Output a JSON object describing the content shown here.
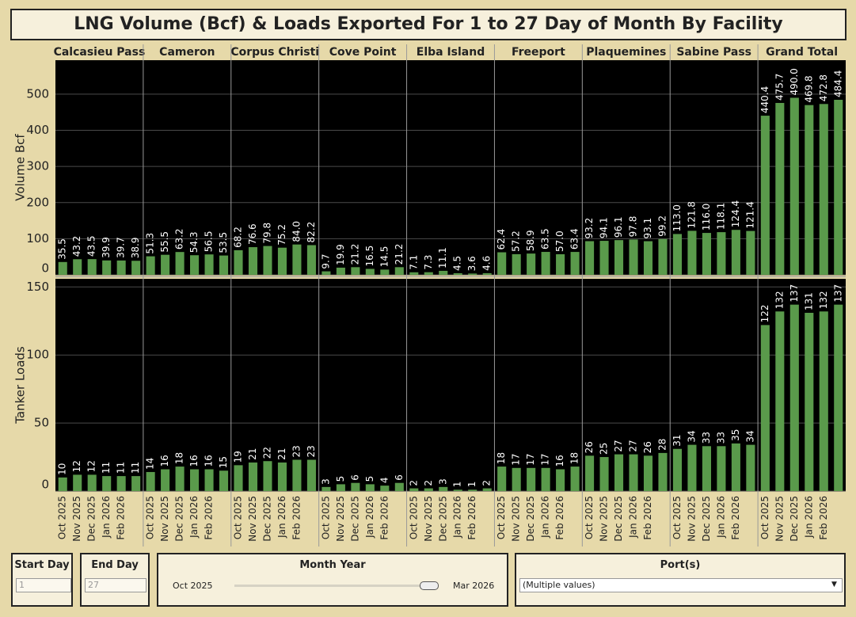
{
  "title": "LNG Volume (Bcf) & Loads Exported For 1 to 27 Day of Month By Facility",
  "facilities": [
    "Calcasieu Pass",
    "Cameron",
    "Corpus Christi",
    "Cove Point",
    "Elba Island",
    "Freeport",
    "Plaquemines",
    "Sabine Pass",
    "Grand Total"
  ],
  "categories": [
    "Oct 2025",
    "Nov 2025",
    "Dec 2025",
    "Jan 2026",
    "Feb 2026",
    null
  ],
  "chart_data": [
    {
      "type": "bar",
      "y_label": "Volume Bcf",
      "ylim": [
        0,
        594
      ],
      "yticks": [
        0,
        100,
        200,
        300,
        400,
        500
      ],
      "color": "#5a9a4b",
      "series": [
        {
          "values": [
            35.5,
            43.2,
            43.5,
            39.9,
            39.7,
            38.9
          ],
          "value_labels": [
            "35.5",
            "43.2",
            "43.5",
            "39.9",
            "39.7",
            "38.9"
          ]
        },
        {
          "values": [
            51.3,
            55.5,
            63.2,
            54.3,
            56.5,
            53.5
          ],
          "value_labels": [
            "51.3",
            "55.5",
            "63.2",
            "54.3",
            "56.5",
            "53.5"
          ]
        },
        {
          "values": [
            68.2,
            76.6,
            79.8,
            75.2,
            84.0,
            82.2
          ],
          "value_labels": [
            "68.2",
            "76.6",
            "79.8",
            "75.2",
            "84.0",
            "82.2"
          ]
        },
        {
          "values": [
            9.7,
            19.9,
            21.2,
            16.5,
            14.5,
            21.2
          ],
          "value_labels": [
            "9.7",
            "19.9",
            "21.2",
            "16.5",
            "14.5",
            "21.2"
          ]
        },
        {
          "values": [
            7.1,
            7.3,
            11.1,
            4.5,
            3.6,
            4.6
          ],
          "value_labels": [
            "7.1",
            "7.3",
            "11.1",
            "4.5",
            "3.6",
            "4.6"
          ]
        },
        {
          "values": [
            62.4,
            57.2,
            58.9,
            63.5,
            57.0,
            63.4
          ],
          "value_labels": [
            "62.4",
            "57.2",
            "58.9",
            "63.5",
            "57.0",
            "63.4"
          ]
        },
        {
          "values": [
            93.2,
            94.1,
            96.1,
            97.8,
            93.1,
            99.2
          ],
          "value_labels": [
            "93.2",
            "94.1",
            "96.1",
            "97.8",
            "93.1",
            "99.2"
          ]
        },
        {
          "values": [
            113.0,
            121.8,
            116.0,
            118.1,
            124.4,
            121.4
          ],
          "value_labels": [
            "113.0",
            "121.8",
            "116.0",
            "118.1",
            "124.4",
            "121.4"
          ]
        },
        {
          "values": [
            440.4,
            475.7,
            490.0,
            469.8,
            472.8,
            484.4
          ],
          "value_labels": [
            "440.4",
            "475.7",
            "490.0",
            "469.8",
            "472.8",
            "484.4"
          ]
        }
      ]
    },
    {
      "type": "bar",
      "y_label": "Tanker Loads",
      "ylim": [
        0,
        156
      ],
      "yticks": [
        0,
        50,
        100,
        150
      ],
      "color": "#5a9a4b",
      "series": [
        {
          "values": [
            10,
            12,
            12,
            11,
            11,
            11
          ]
        },
        {
          "values": [
            14,
            16,
            18,
            16,
            16,
            15
          ]
        },
        {
          "values": [
            19,
            21,
            22,
            21,
            23,
            23
          ]
        },
        {
          "values": [
            3,
            5,
            6,
            5,
            4,
            6
          ]
        },
        {
          "values": [
            2,
            2,
            3,
            1,
            1,
            2
          ]
        },
        {
          "values": [
            18,
            17,
            17,
            17,
            16,
            18
          ]
        },
        {
          "values": [
            26,
            25,
            27,
            27,
            26,
            28
          ]
        },
        {
          "values": [
            31,
            34,
            33,
            33,
            35,
            34
          ]
        },
        {
          "values": [
            122,
            132,
            137,
            131,
            132,
            137
          ]
        }
      ]
    }
  ],
  "filters": {
    "start_day": {
      "label": "Start Day",
      "value": "1"
    },
    "end_day": {
      "label": "End Day",
      "value": "27"
    },
    "month_year": {
      "label": "Month Year",
      "from": "Oct 2025",
      "to": "Mar 2026"
    },
    "ports": {
      "label": "Port(s)",
      "value": "(Multiple values)"
    }
  }
}
